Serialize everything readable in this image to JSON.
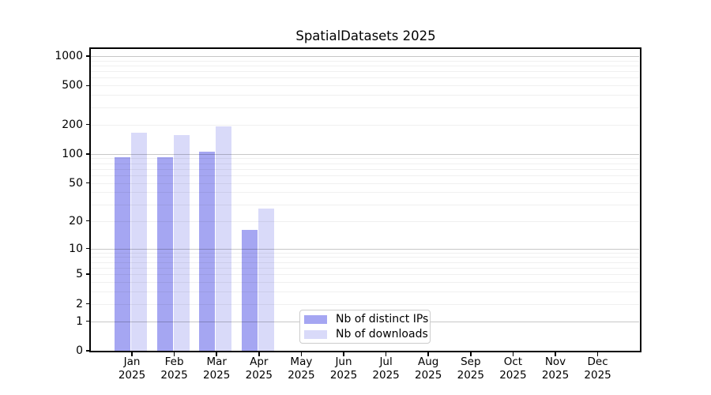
{
  "chart_data": {
    "type": "bar",
    "title": "SpatialDatasets 2025",
    "categories": [
      {
        "month": "Jan",
        "year": "2025"
      },
      {
        "month": "Feb",
        "year": "2025"
      },
      {
        "month": "Mar",
        "year": "2025"
      },
      {
        "month": "Apr",
        "year": "2025"
      },
      {
        "month": "May",
        "year": "2025"
      },
      {
        "month": "Jun",
        "year": "2025"
      },
      {
        "month": "Jul",
        "year": "2025"
      },
      {
        "month": "Aug",
        "year": "2025"
      },
      {
        "month": "Sep",
        "year": "2025"
      },
      {
        "month": "Oct",
        "year": "2025"
      },
      {
        "month": "Nov",
        "year": "2025"
      },
      {
        "month": "Dec",
        "year": "2025"
      }
    ],
    "series": [
      {
        "name": "Nb of distinct IPs",
        "color": "#a5a6f2",
        "values": [
          93,
          92,
          105,
          16,
          0,
          0,
          0,
          0,
          0,
          0,
          0,
          0
        ]
      },
      {
        "name": "Nb of downloads",
        "color": "#d9daf9",
        "values": [
          165,
          157,
          192,
          27,
          0,
          0,
          0,
          0,
          0,
          0,
          0,
          0
        ]
      }
    ],
    "xlabel": "",
    "ylabel": "",
    "y_axis": {
      "scale": "log1p",
      "ticks": [
        1000,
        500,
        200,
        100,
        50,
        20,
        10,
        5,
        2,
        1,
        0
      ],
      "range": [
        0,
        1180
      ]
    },
    "grid": {
      "on": true,
      "major_values": [
        1,
        10,
        100,
        1000
      ]
    },
    "legend_position": "inside bottom-center"
  },
  "colors": {
    "background": "#ffffff",
    "axis": "#000000",
    "text": "#000000",
    "major_grid": "rgba(0,0,0,0.22)",
    "minor_grid": "rgba(0,0,0,0.06)",
    "legend_border": "#cccccc"
  }
}
